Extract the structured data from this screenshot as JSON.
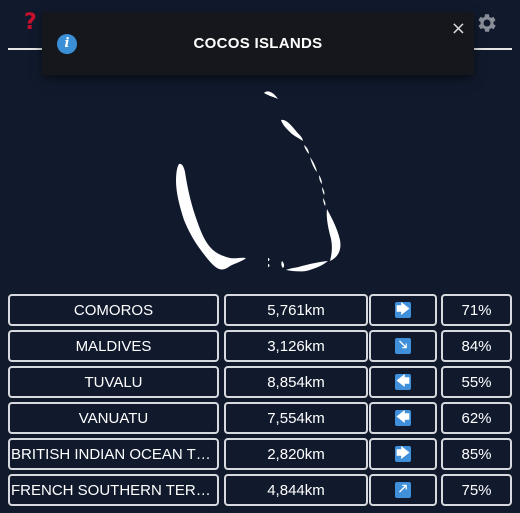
{
  "toast": {
    "title": "COCOS ISLANDS",
    "close_glyph": "×",
    "info_glyph": "i"
  },
  "header": {
    "help_glyph": "?"
  },
  "guesses": [
    {
      "country": "COMOROS",
      "distance": "5,761km",
      "direction": "east",
      "direction_glyph": "🡆",
      "proximity": "71%"
    },
    {
      "country": "MALDIVES",
      "distance": "3,126km",
      "direction": "south-east",
      "direction_glyph": "🡖",
      "proximity": "84%"
    },
    {
      "country": "TUVALU",
      "distance": "8,854km",
      "direction": "west",
      "direction_glyph": "🡄",
      "proximity": "55%"
    },
    {
      "country": "VANUATU",
      "distance": "7,554km",
      "direction": "west",
      "direction_glyph": "🡄",
      "proximity": "62%"
    },
    {
      "country": "BRITISH INDIAN OCEAN TE...",
      "distance": "2,820km",
      "direction": "east",
      "direction_glyph": "🡆",
      "proximity": "85%"
    },
    {
      "country": "FRENCH SOUTHERN TERRIT...",
      "distance": "4,844km",
      "direction": "north-east",
      "direction_glyph": "🡕",
      "proximity": "75%"
    }
  ],
  "colors": {
    "background": "#111a2d",
    "help": "#c8102e",
    "arrow_bg": "#3f8fdb",
    "info_bg": "#3b8fd6",
    "toast_bg": "#15171c",
    "border": "#d6d9de"
  },
  "icons": {
    "help": "question-mark-icon",
    "settings": "gear-icon",
    "info": "info-icon",
    "close": "close-icon"
  }
}
